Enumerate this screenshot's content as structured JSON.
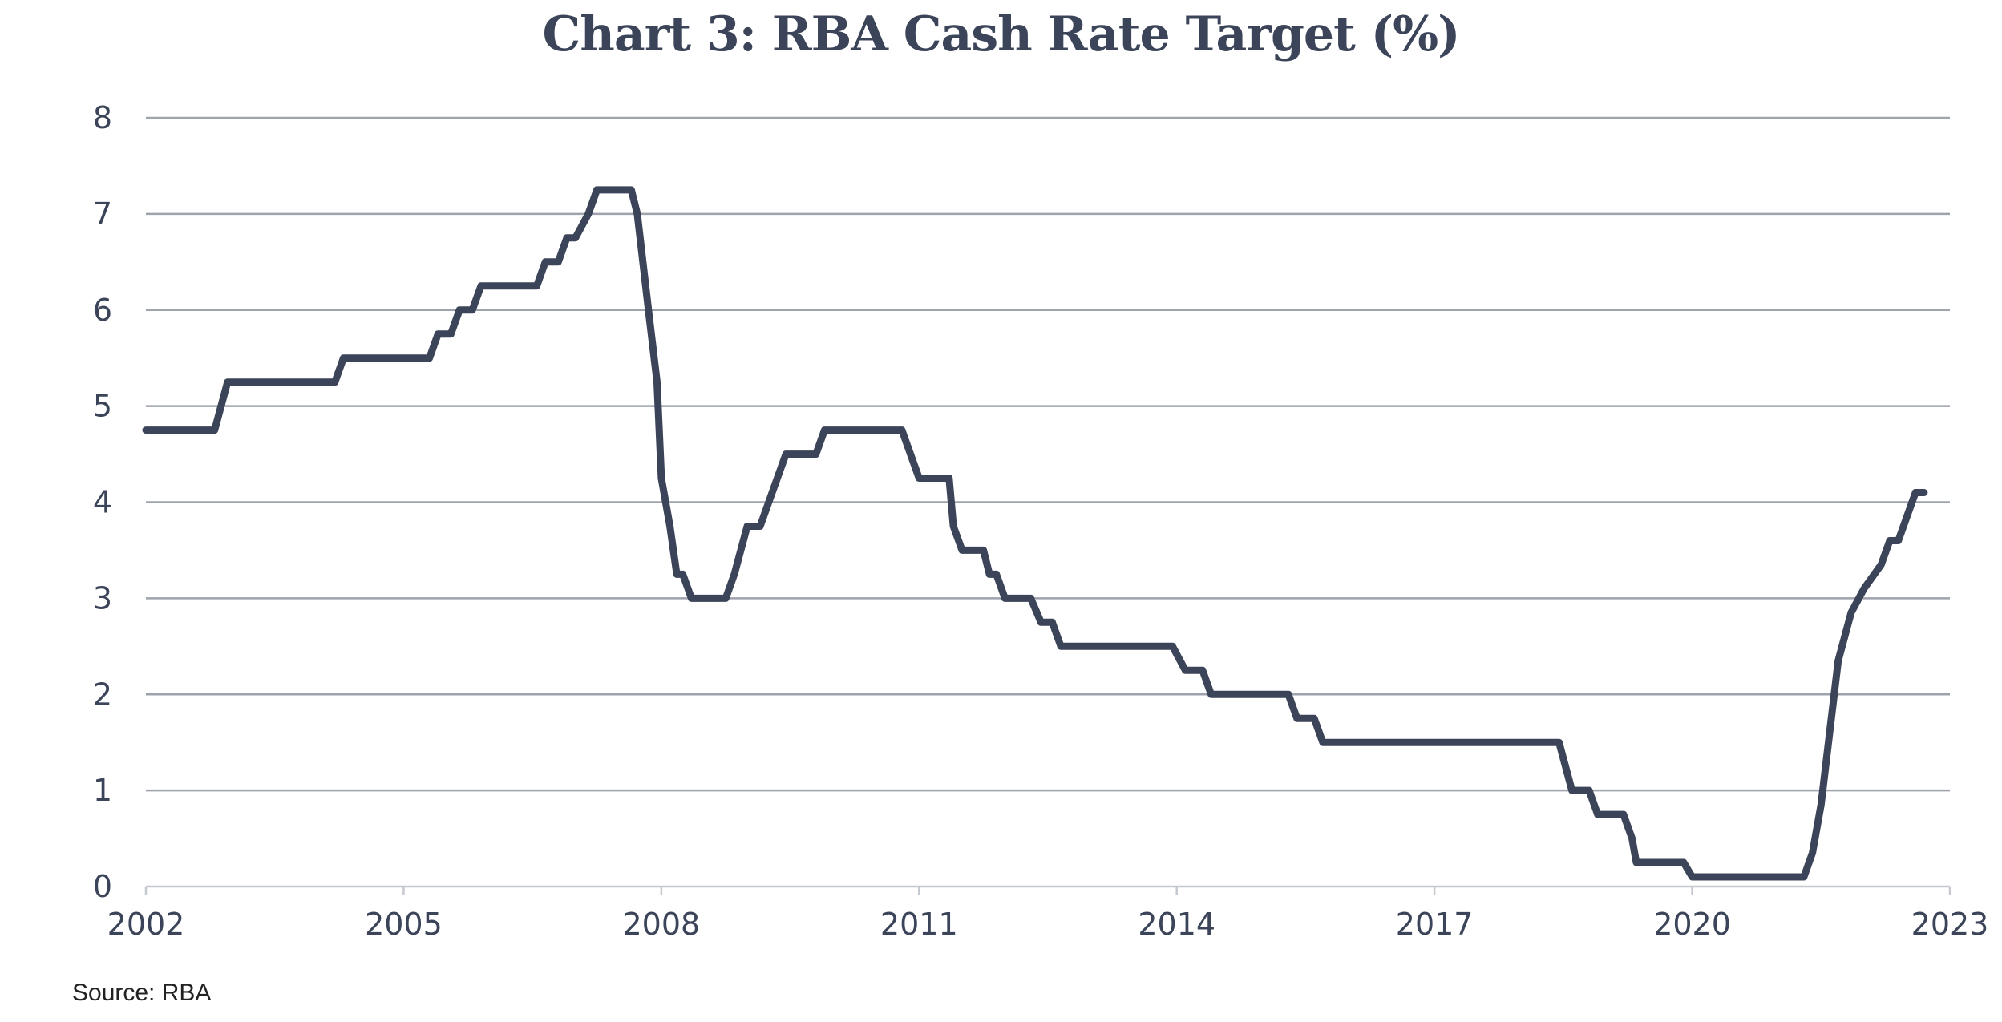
{
  "chart_data": {
    "type": "line",
    "title": "Chart 3: RBA Cash Rate Target (%)",
    "xlabel": "",
    "ylabel": "",
    "xlim": [
      2002,
      2023
    ],
    "ylim": [
      0,
      8
    ],
    "x_ticks": [
      "2002",
      "2005",
      "2008",
      "2011",
      "2014",
      "2017",
      "2020",
      "2023"
    ],
    "y_ticks": [
      "0",
      "1",
      "2",
      "3",
      "4",
      "5",
      "6",
      "7",
      "8"
    ],
    "grid": true,
    "legend": "none",
    "line_color": "#3b4458",
    "series": [
      {
        "points": [
          [
            2002.0,
            4.75
          ],
          [
            2002.8,
            4.75
          ],
          [
            2002.95,
            5.25
          ],
          [
            2004.2,
            5.25
          ],
          [
            2004.3,
            5.5
          ],
          [
            2005.3,
            5.5
          ],
          [
            2005.4,
            5.75
          ],
          [
            2005.55,
            5.75
          ],
          [
            2005.65,
            6.0
          ],
          [
            2005.8,
            6.0
          ],
          [
            2005.9,
            6.25
          ],
          [
            2006.55,
            6.25
          ],
          [
            2006.65,
            6.5
          ],
          [
            2006.8,
            6.5
          ],
          [
            2006.9,
            6.75
          ],
          [
            2007.0,
            6.75
          ],
          [
            2007.15,
            7.0
          ],
          [
            2007.25,
            7.25
          ],
          [
            2007.65,
            7.25
          ],
          [
            2007.72,
            7.0
          ],
          [
            2007.85,
            6.0
          ],
          [
            2007.95,
            5.25
          ],
          [
            2008.0,
            4.25
          ],
          [
            2008.1,
            3.75
          ],
          [
            2008.18,
            3.25
          ],
          [
            2008.25,
            3.25
          ],
          [
            2008.35,
            3.0
          ],
          [
            2008.75,
            3.0
          ],
          [
            2008.85,
            3.25
          ],
          [
            2009.0,
            3.75
          ],
          [
            2009.15,
            3.75
          ],
          [
            2009.25,
            4.0
          ],
          [
            2009.35,
            4.25
          ],
          [
            2009.45,
            4.5
          ],
          [
            2009.8,
            4.5
          ],
          [
            2009.9,
            4.75
          ],
          [
            2010.8,
            4.75
          ],
          [
            2010.9,
            4.5
          ],
          [
            2011.0,
            4.25
          ],
          [
            2011.35,
            4.25
          ],
          [
            2011.4,
            3.75
          ],
          [
            2011.5,
            3.5
          ],
          [
            2011.75,
            3.5
          ],
          [
            2011.82,
            3.25
          ],
          [
            2011.9,
            3.25
          ],
          [
            2012.0,
            3.0
          ],
          [
            2012.3,
            3.0
          ],
          [
            2012.42,
            2.75
          ],
          [
            2012.55,
            2.75
          ],
          [
            2012.65,
            2.5
          ],
          [
            2013.95,
            2.5
          ],
          [
            2014.1,
            2.25
          ],
          [
            2014.3,
            2.25
          ],
          [
            2014.4,
            2.0
          ],
          [
            2015.3,
            2.0
          ],
          [
            2015.4,
            1.75
          ],
          [
            2015.6,
            1.75
          ],
          [
            2015.7,
            1.5
          ],
          [
            2018.45,
            1.5
          ],
          [
            2018.6,
            1.0
          ],
          [
            2018.8,
            1.0
          ],
          [
            2018.9,
            0.75
          ],
          [
            2019.2,
            0.75
          ],
          [
            2019.3,
            0.5
          ],
          [
            2019.35,
            0.25
          ],
          [
            2019.9,
            0.25
          ],
          [
            2020.0,
            0.1
          ],
          [
            2021.3,
            0.1
          ],
          [
            2021.4,
            0.35
          ],
          [
            2021.5,
            0.85
          ],
          [
            2021.6,
            1.6
          ],
          [
            2021.7,
            2.35
          ],
          [
            2021.85,
            2.85
          ],
          [
            2022.0,
            3.1
          ],
          [
            2022.2,
            3.35
          ],
          [
            2022.3,
            3.6
          ],
          [
            2022.4,
            3.6
          ],
          [
            2022.5,
            3.85
          ],
          [
            2022.6,
            4.1
          ],
          [
            2022.7,
            4.1
          ]
        ]
      }
    ],
    "source": "Source: RBA"
  }
}
